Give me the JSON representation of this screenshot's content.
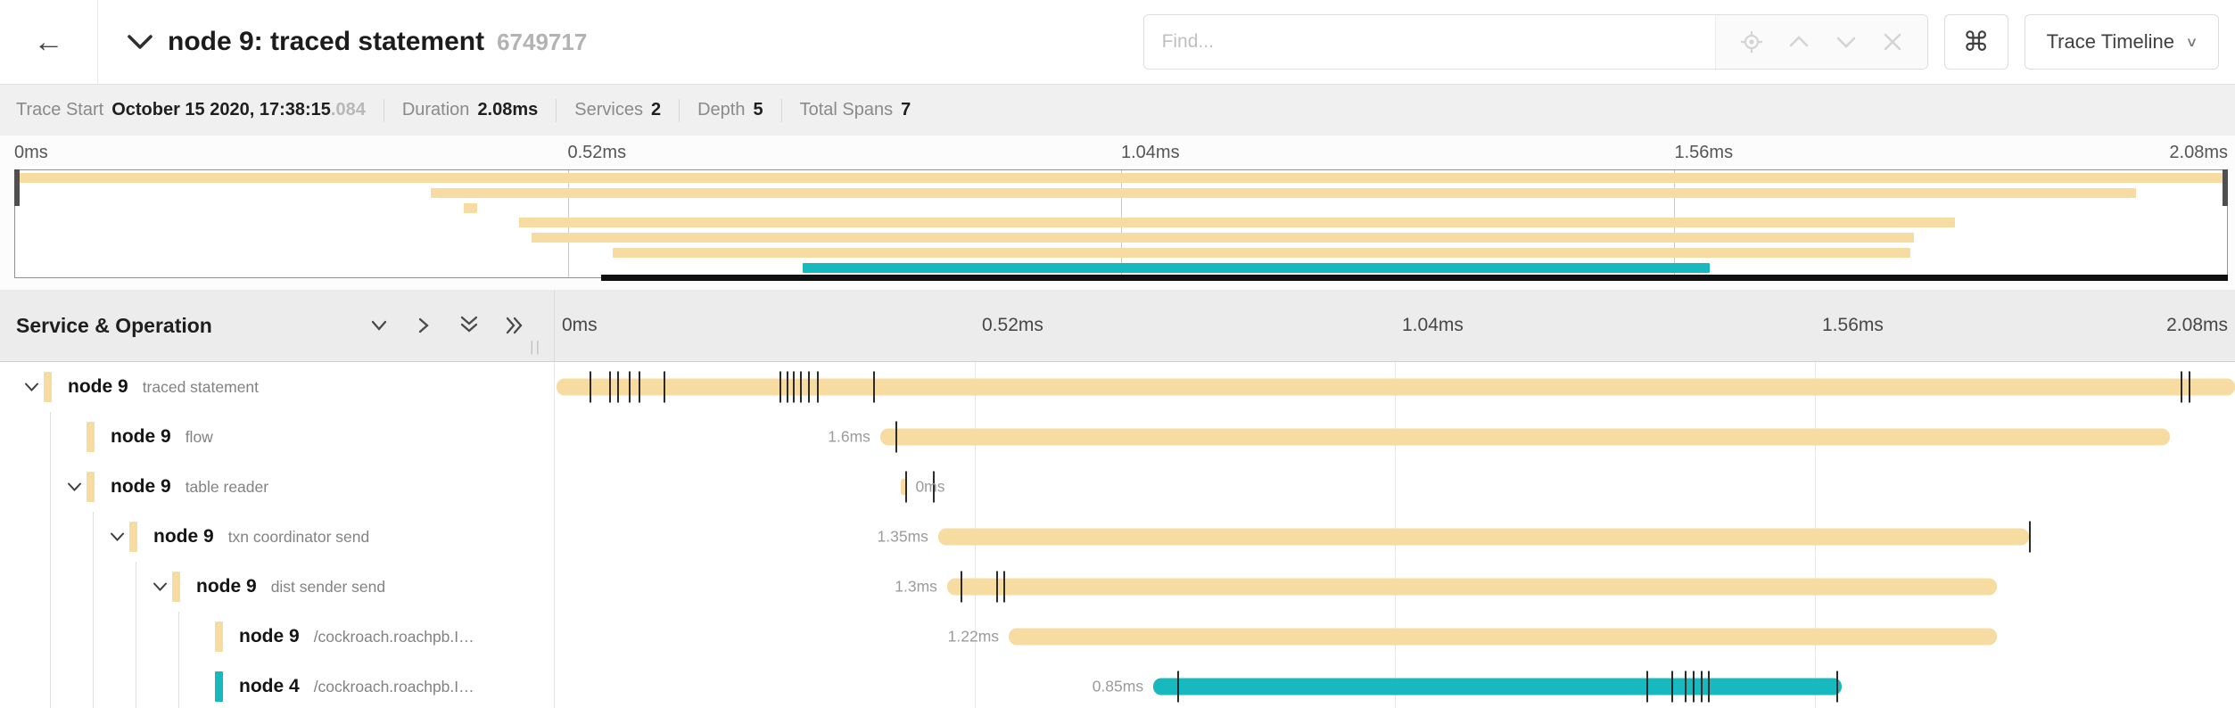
{
  "header": {
    "back_icon": "←",
    "title": "node 9: traced statement",
    "trace_id": "6749717",
    "find_placeholder": "Find...",
    "shortcut_button": "⌘",
    "view_selector_label": "Trace Timeline",
    "view_selector_caret": "∨"
  },
  "meta": {
    "trace_start_label": "Trace Start",
    "trace_start_value": "October 15 2020, 17:38:15",
    "trace_start_fraction": ".084",
    "duration_label": "Duration",
    "duration_value": "2.08ms",
    "services_label": "Services",
    "services_value": "2",
    "depth_label": "Depth",
    "depth_value": "5",
    "total_spans_label": "Total Spans",
    "total_spans_value": "7"
  },
  "colors": {
    "tan": "#F7DCA1",
    "teal": "#17B8BE"
  },
  "minimap": {
    "ticks": [
      {
        "label": "0ms",
        "pos": 0,
        "align": "left"
      },
      {
        "label": "0.52ms",
        "pos": 25,
        "align": "left"
      },
      {
        "label": "1.04ms",
        "pos": 50,
        "align": "left"
      },
      {
        "label": "1.56ms",
        "pos": 75,
        "align": "left"
      },
      {
        "label": "2.08ms",
        "pos": 100,
        "align": "right"
      }
    ],
    "spans": [
      {
        "start": 0,
        "width": 1,
        "color": "#F7DCA1"
      },
      {
        "start": 0.188,
        "width": 0.771,
        "color": "#F7DCA1"
      },
      {
        "start": 0.203,
        "width": 0.006,
        "color": "#F7DCA1"
      },
      {
        "start": 0.228,
        "width": 0.649,
        "color": "#F7DCA1"
      },
      {
        "start": 0.2335,
        "width": 0.6248,
        "color": "#F7DCA1"
      },
      {
        "start": 0.27,
        "width": 0.587,
        "color": "#F7DCA1"
      },
      {
        "start": 0.356,
        "width": 0.41,
        "color": "#17B8BE"
      }
    ],
    "blackbar_start": 0.265
  },
  "timeline": {
    "left_header": "Service & Operation",
    "ticks": [
      {
        "label": "0ms",
        "pos": 0,
        "align": "left"
      },
      {
        "label": "0.52ms",
        "pos": 25,
        "align": "left"
      },
      {
        "label": "1.04ms",
        "pos": 50,
        "align": "left"
      },
      {
        "label": "1.56ms",
        "pos": 75,
        "align": "left"
      },
      {
        "label": "2.08ms",
        "pos": 100,
        "align": "right"
      }
    ],
    "rows": [
      {
        "service": "node 9",
        "operation": "traced statement",
        "depth": 0,
        "expandable": true,
        "color": "#F7DCA1",
        "start": 0.0011,
        "width": 0.9989,
        "duration_label": "",
        "label_side": "none",
        "ticks": [
          0.0207,
          0.0324,
          0.0372,
          0.0441,
          0.0499,
          0.0648,
          0.1338,
          0.138,
          0.1417,
          0.146,
          0.1507,
          0.156,
          0.1895,
          0.9676,
          0.9724
        ]
      },
      {
        "service": "node 9",
        "operation": "flow",
        "depth": 1,
        "expandable": false,
        "color": "#F7DCA1",
        "start": 0.1937,
        "width": 0.7675,
        "duration_label": "1.6ms",
        "label_side": "left",
        "ticks": [
          0.2028
        ]
      },
      {
        "service": "node 9",
        "operation": "table reader",
        "depth": 1,
        "expandable": true,
        "color": "#F7DCA1",
        "start": 0.2059,
        "width": 0.004,
        "duration_label": "0ms",
        "label_side": "right",
        "ticks": [
          0.2086,
          0.2251
        ]
      },
      {
        "service": "node 9",
        "operation": "txn coordinator send",
        "depth": 2,
        "expandable": true,
        "color": "#F7DCA1",
        "start": 0.2282,
        "width": 0.6492,
        "duration_label": "1.35ms",
        "label_side": "left",
        "ticks": [
          0.8774
        ]
      },
      {
        "service": "node 9",
        "operation": "dist sender send",
        "depth": 3,
        "expandable": true,
        "color": "#F7DCA1",
        "start": 0.2335,
        "width": 0.6248,
        "duration_label": "1.3ms",
        "label_side": "left",
        "ticks": [
          0.2415,
          0.2627,
          0.267
        ]
      },
      {
        "service": "node 9",
        "operation": "/cockroach.roachpb.I…",
        "depth": 4,
        "expandable": false,
        "color": "#F7DCA1",
        "start": 0.2702,
        "width": 0.5881,
        "duration_label": "1.22ms",
        "label_side": "left",
        "ticks": []
      },
      {
        "service": "node 4",
        "operation": "/cockroach.roachpb.I…",
        "depth": 4,
        "expandable": false,
        "color": "#17B8BE",
        "start": 0.3562,
        "width": 0.4098,
        "duration_label": "0.85ms",
        "label_side": "left",
        "ticks": [
          0.3705,
          0.6497,
          0.6645,
          0.6725,
          0.6773,
          0.682,
          0.6862,
          0.7627
        ]
      }
    ]
  }
}
